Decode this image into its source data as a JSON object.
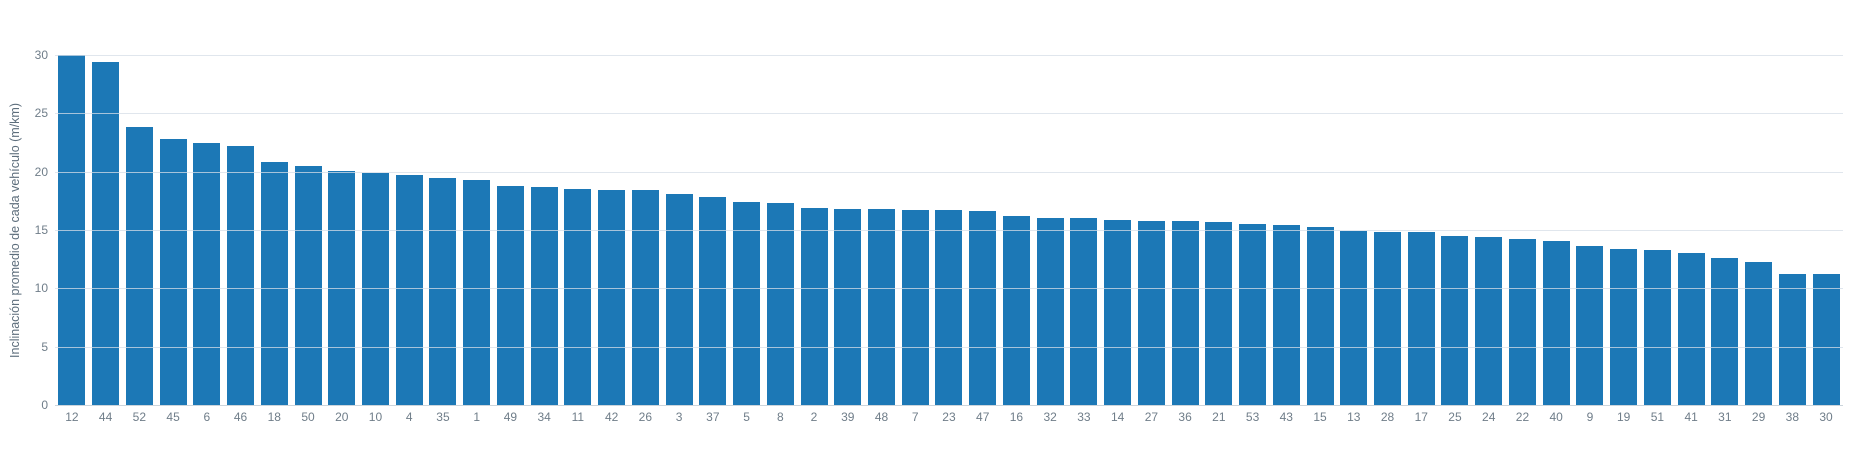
{
  "chart_data": {
    "type": "bar",
    "title": "",
    "xlabel": "",
    "ylabel": "Inclinación promedio de cada vehículo (m/km)",
    "legend_position": "none",
    "grid": true,
    "ylim": [
      0,
      30
    ],
    "yticks": [
      0,
      5,
      10,
      15,
      20,
      25,
      30
    ],
    "categories": [
      "12",
      "44",
      "52",
      "45",
      "6",
      "46",
      "18",
      "50",
      "20",
      "10",
      "4",
      "35",
      "1",
      "49",
      "34",
      "11",
      "42",
      "26",
      "3",
      "37",
      "5",
      "8",
      "2",
      "39",
      "48",
      "7",
      "23",
      "47",
      "16",
      "32",
      "33",
      "14",
      "27",
      "36",
      "21",
      "53",
      "43",
      "15",
      "13",
      "28",
      "17",
      "25",
      "24",
      "22",
      "40",
      "9",
      "19",
      "51",
      "41",
      "31",
      "29",
      "38",
      "30"
    ],
    "values": [
      30.0,
      29.4,
      23.8,
      22.8,
      22.5,
      22.2,
      20.8,
      20.5,
      20.1,
      19.9,
      19.7,
      19.5,
      19.3,
      18.8,
      18.7,
      18.5,
      18.4,
      18.4,
      18.1,
      17.8,
      17.4,
      17.3,
      16.9,
      16.8,
      16.8,
      16.7,
      16.7,
      16.6,
      16.2,
      16.0,
      16.0,
      15.9,
      15.8,
      15.8,
      15.7,
      15.5,
      15.4,
      15.3,
      14.9,
      14.8,
      14.8,
      14.5,
      14.4,
      14.2,
      14.1,
      13.6,
      13.4,
      13.3,
      13.0,
      12.6,
      12.3,
      11.2,
      11.2
    ]
  },
  "style": {
    "background": "#ffffff",
    "bar_color": "#1c78b6",
    "grid_color": "rgba(214,222,231,0.75)",
    "axis_line_color": "#ccd5dc",
    "tick_label_color": "#6f7d89",
    "ylabel_color": "#5d6e7c"
  }
}
